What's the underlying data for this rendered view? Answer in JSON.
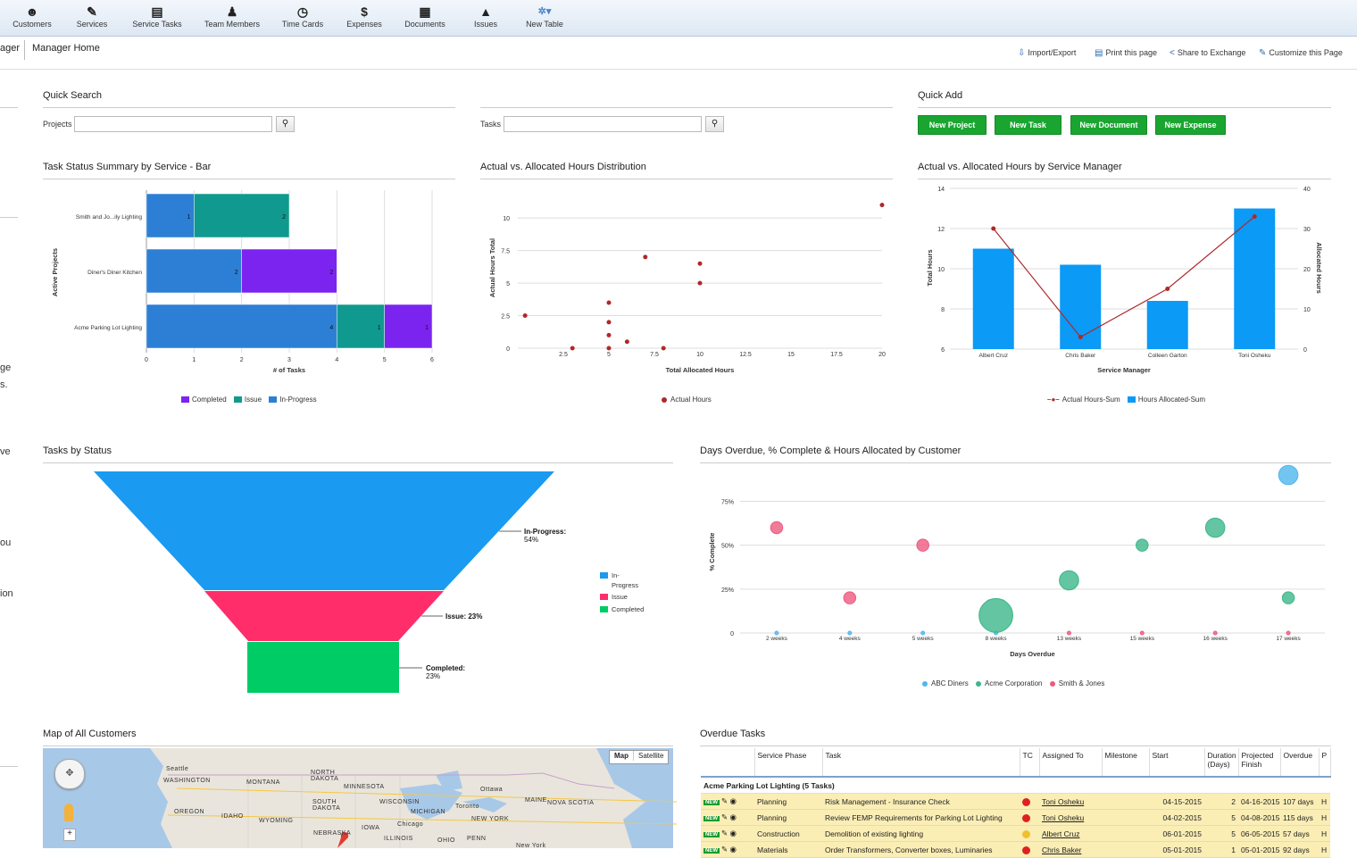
{
  "nav": [
    {
      "label": "Customers",
      "icon": "customers-icon",
      "glyph": "☻"
    },
    {
      "label": "Services",
      "icon": "wrench-icon",
      "glyph": "✎"
    },
    {
      "label": "Service Tasks",
      "icon": "clipboard-icon",
      "glyph": "▤"
    },
    {
      "label": "Team Members",
      "icon": "team-icon",
      "glyph": "♟"
    },
    {
      "label": "Time Cards",
      "icon": "clock-icon",
      "glyph": "◷"
    },
    {
      "label": "Expenses",
      "icon": "dollar-icon",
      "glyph": "$"
    },
    {
      "label": "Documents",
      "icon": "documents-icon",
      "glyph": "▦"
    },
    {
      "label": "Issues",
      "icon": "warning-icon",
      "glyph": "▲"
    },
    {
      "label": "New Table",
      "icon": "gear-icon",
      "glyph": "✲▾"
    }
  ],
  "breadcrumb": {
    "prev": "ager",
    "current": "Manager Home"
  },
  "tools": {
    "import_export": "Import/Export",
    "print": "Print this page",
    "share": "Share to Exchange",
    "customize": "Customize this Page"
  },
  "left_fragments": [
    "ge",
    "s.",
    "ve",
    "ou",
    "ion"
  ],
  "quick_search": {
    "title": "Quick Search",
    "projects_label": "Projects",
    "tasks_label": "Tasks"
  },
  "quick_add": {
    "title": "Quick Add",
    "buttons": [
      "New Project",
      "New Task",
      "New Document",
      "New Expense"
    ]
  },
  "colors": {
    "completed": "#7b24f0",
    "issue": "#109a8f",
    "in_progress": "#2d7fd6",
    "funnel_in_progress": "#1a9af0",
    "funnel_issue": "#ff2d6a",
    "funnel_completed": "#00cc66",
    "bar_blue": "#0b9af5",
    "line_red": "#b0282a"
  },
  "chart_data": [
    {
      "type": "bar",
      "orientation": "horizontal",
      "stacked": true,
      "title": "Task Status Summary by Service - Bar",
      "xlabel": "# of Tasks",
      "ylabel": "Active Projects",
      "categories": [
        "Smith and Jo...ily Lighting",
        "Diner's Diner Kitchen",
        "Acme Parking Lot Lighting"
      ],
      "series": [
        {
          "name": "In-Progress",
          "values": [
            1,
            2,
            4
          ]
        },
        {
          "name": "Issue",
          "values": [
            2,
            0,
            1
          ]
        },
        {
          "name": "Completed",
          "values": [
            0,
            2,
            1
          ]
        }
      ],
      "xlim": [
        0,
        6
      ],
      "xticks": [
        0,
        1,
        2,
        3,
        4,
        5,
        6
      ],
      "legend": [
        "Completed",
        "Issue",
        "In-Progress"
      ]
    },
    {
      "type": "scatter",
      "title": "Actual vs. Allocated Hours Distribution",
      "xlabel": "Total Allocated Hours",
      "ylabel": "Actual Hours Total",
      "xlim": [
        0,
        20
      ],
      "ylim": [
        0,
        12
      ],
      "xticks": [
        "2.5",
        "5",
        "7.5",
        "10",
        "12.5",
        "15",
        "17.5",
        "20"
      ],
      "yticks": [
        "0",
        "2.5",
        "5",
        "7.5",
        "10"
      ],
      "points": [
        [
          0.4,
          2.5
        ],
        [
          3,
          0
        ],
        [
          5,
          0
        ],
        [
          5,
          1
        ],
        [
          5,
          2
        ],
        [
          5,
          3.5
        ],
        [
          6,
          0.5
        ],
        [
          7,
          7
        ],
        [
          8,
          0
        ],
        [
          10,
          6.5
        ],
        [
          10,
          5
        ],
        [
          20,
          11
        ]
      ],
      "legend": [
        "Actual Hours"
      ]
    },
    {
      "type": "bar+line",
      "title": "Actual vs. Allocated Hours by Service Manager",
      "xlabel": "Service Manager",
      "ylabel": "Total Hours",
      "y2label": "Allocated Hours",
      "categories": [
        "Albert Cruz",
        "Chris Baker",
        "Colleen Garton",
        "Toni Osheku"
      ],
      "bar_series": {
        "name": "Hours Allocated-Sum",
        "values": [
          11,
          10.2,
          8.4,
          13
        ]
      },
      "line_series": {
        "name": "Actual Hours-Sum",
        "values": [
          30,
          3,
          15,
          33
        ]
      },
      "ylim": [
        6,
        14
      ],
      "yticks": [
        "6",
        "8",
        "10",
        "12",
        "14"
      ],
      "y2lim": [
        0,
        40
      ],
      "y2ticks": [
        "0",
        "10",
        "20",
        "30",
        "40"
      ],
      "legend": [
        "Actual Hours-Sum",
        "Hours Allocated-Sum"
      ]
    },
    {
      "type": "funnel",
      "title": "Tasks by Status",
      "segments": [
        {
          "name": "In-Progress",
          "label": "In-Progress:",
          "pct": "54%"
        },
        {
          "name": "Issue",
          "label": "Issue: 23%",
          "pct": ""
        },
        {
          "name": "Completed",
          "label": "Completed:",
          "pct": "23%"
        }
      ],
      "legend": [
        "In-\nProgress",
        "Issue",
        "Completed"
      ]
    },
    {
      "type": "bubble",
      "title": "Days Overdue, % Complete & Hours Allocated by Customer",
      "xlabel": "Days Overdue",
      "ylabel": "% Complete",
      "categories": [
        "2 weeks",
        "4 weeks",
        "5 weeks",
        "8 weeks",
        "13 weeks",
        "15 weeks",
        "16 weeks",
        "17 weeks"
      ],
      "yticks": [
        "0",
        "25%",
        "50%",
        "75%"
      ],
      "ylim": [
        0,
        0.9
      ],
      "series": [
        {
          "name": "ABC Diners",
          "color": "#4fb6ee",
          "points": [
            [
              0,
              0,
              1
            ],
            [
              1,
              0,
              1
            ],
            [
              2,
              0,
              1
            ],
            [
              3,
              0,
              1
            ],
            [
              7,
              0.9,
              8
            ]
          ]
        },
        {
          "name": "Acme Corporation",
          "color": "#3cb78a",
          "points": [
            [
              3,
              0.1,
              14
            ],
            [
              4,
              0.3,
              8
            ],
            [
              5,
              0.5,
              5
            ],
            [
              6,
              0.6,
              8
            ],
            [
              7,
              0.2,
              5
            ]
          ]
        },
        {
          "name": "Smith & Jones",
          "color": "#ee5a7e",
          "points": [
            [
              0,
              0.6,
              5
            ],
            [
              1,
              0.2,
              5
            ],
            [
              2,
              0.5,
              5
            ],
            [
              4,
              0,
              1
            ],
            [
              5,
              0,
              1
            ],
            [
              6,
              0,
              1
            ],
            [
              7,
              0,
              1
            ]
          ]
        }
      ],
      "legend": [
        "ABC Diners",
        "Acme Corporation",
        "Smith & Jones"
      ]
    }
  ],
  "map": {
    "title": "Map of All Customers",
    "type_map": "Map",
    "type_satellite": "Satellite",
    "labels": [
      {
        "t": "Seattle"
      },
      {
        "t": "WASHINGTON"
      },
      {
        "t": "MONTANA"
      },
      {
        "t": "NORTH\nDAKOTA"
      },
      {
        "t": "MINNESOTA"
      },
      {
        "t": "OREGON"
      },
      {
        "t": "IDAHO"
      },
      {
        "t": "WYOMING"
      },
      {
        "t": "SOUTH\nDAKOTA"
      },
      {
        "t": "WISCONSIN"
      },
      {
        "t": "MICHIGAN"
      },
      {
        "t": "Chicago"
      },
      {
        "t": "IOWA"
      },
      {
        "t": "NEBRASKA"
      },
      {
        "t": "ILLINOIS"
      },
      {
        "t": "OHIO"
      },
      {
        "t": "PENN"
      },
      {
        "t": "NEW YORK"
      },
      {
        "t": "Toronto"
      },
      {
        "t": "Ottawa"
      },
      {
        "t": "MAINE"
      },
      {
        "t": "NOVA SCOTIA"
      },
      {
        "t": "New York"
      }
    ]
  },
  "overdue": {
    "title": "Overdue Tasks",
    "headers": [
      "Service Phase",
      "Task",
      "TC",
      "Assigned To",
      "Milestone",
      "Start",
      "Duration\n(Days)",
      "Projected\nFinish",
      "Overdue",
      "P"
    ],
    "group": "Acme Parking Lot Lighting",
    "group_count": "(5 Tasks)",
    "new_badge": "NEW",
    "rows": [
      {
        "phase": "Planning",
        "task": "Risk Management - Insurance Check",
        "tc": "#e02020",
        "assigned": "Toni Osheku",
        "milestone": "",
        "start": "04-15-2015",
        "duration": "2",
        "finish": "04-16-2015",
        "overdue": "107 days",
        "p": "H"
      },
      {
        "phase": "Planning",
        "task": "Review FEMP Requirements for Parking Lot Lighting",
        "tc": "#e02020",
        "assigned": "Toni Osheku",
        "milestone": "",
        "start": "04-02-2015",
        "duration": "5",
        "finish": "04-08-2015",
        "overdue": "115 days",
        "p": "H"
      },
      {
        "phase": "Construction",
        "task": "Demolition of existing lighting",
        "tc": "#f0c030",
        "assigned": "Albert Cruz",
        "milestone": "",
        "start": "06-01-2015",
        "duration": "5",
        "finish": "06-05-2015",
        "overdue": "57 days",
        "p": "H"
      },
      {
        "phase": "Materials",
        "task": "Order Transformers, Converter boxes, Luminaries",
        "tc": "#e02020",
        "assigned": "Chris Baker",
        "milestone": "",
        "start": "05-01-2015",
        "duration": "1",
        "finish": "05-01-2015",
        "overdue": "92 days",
        "p": "H"
      }
    ]
  }
}
